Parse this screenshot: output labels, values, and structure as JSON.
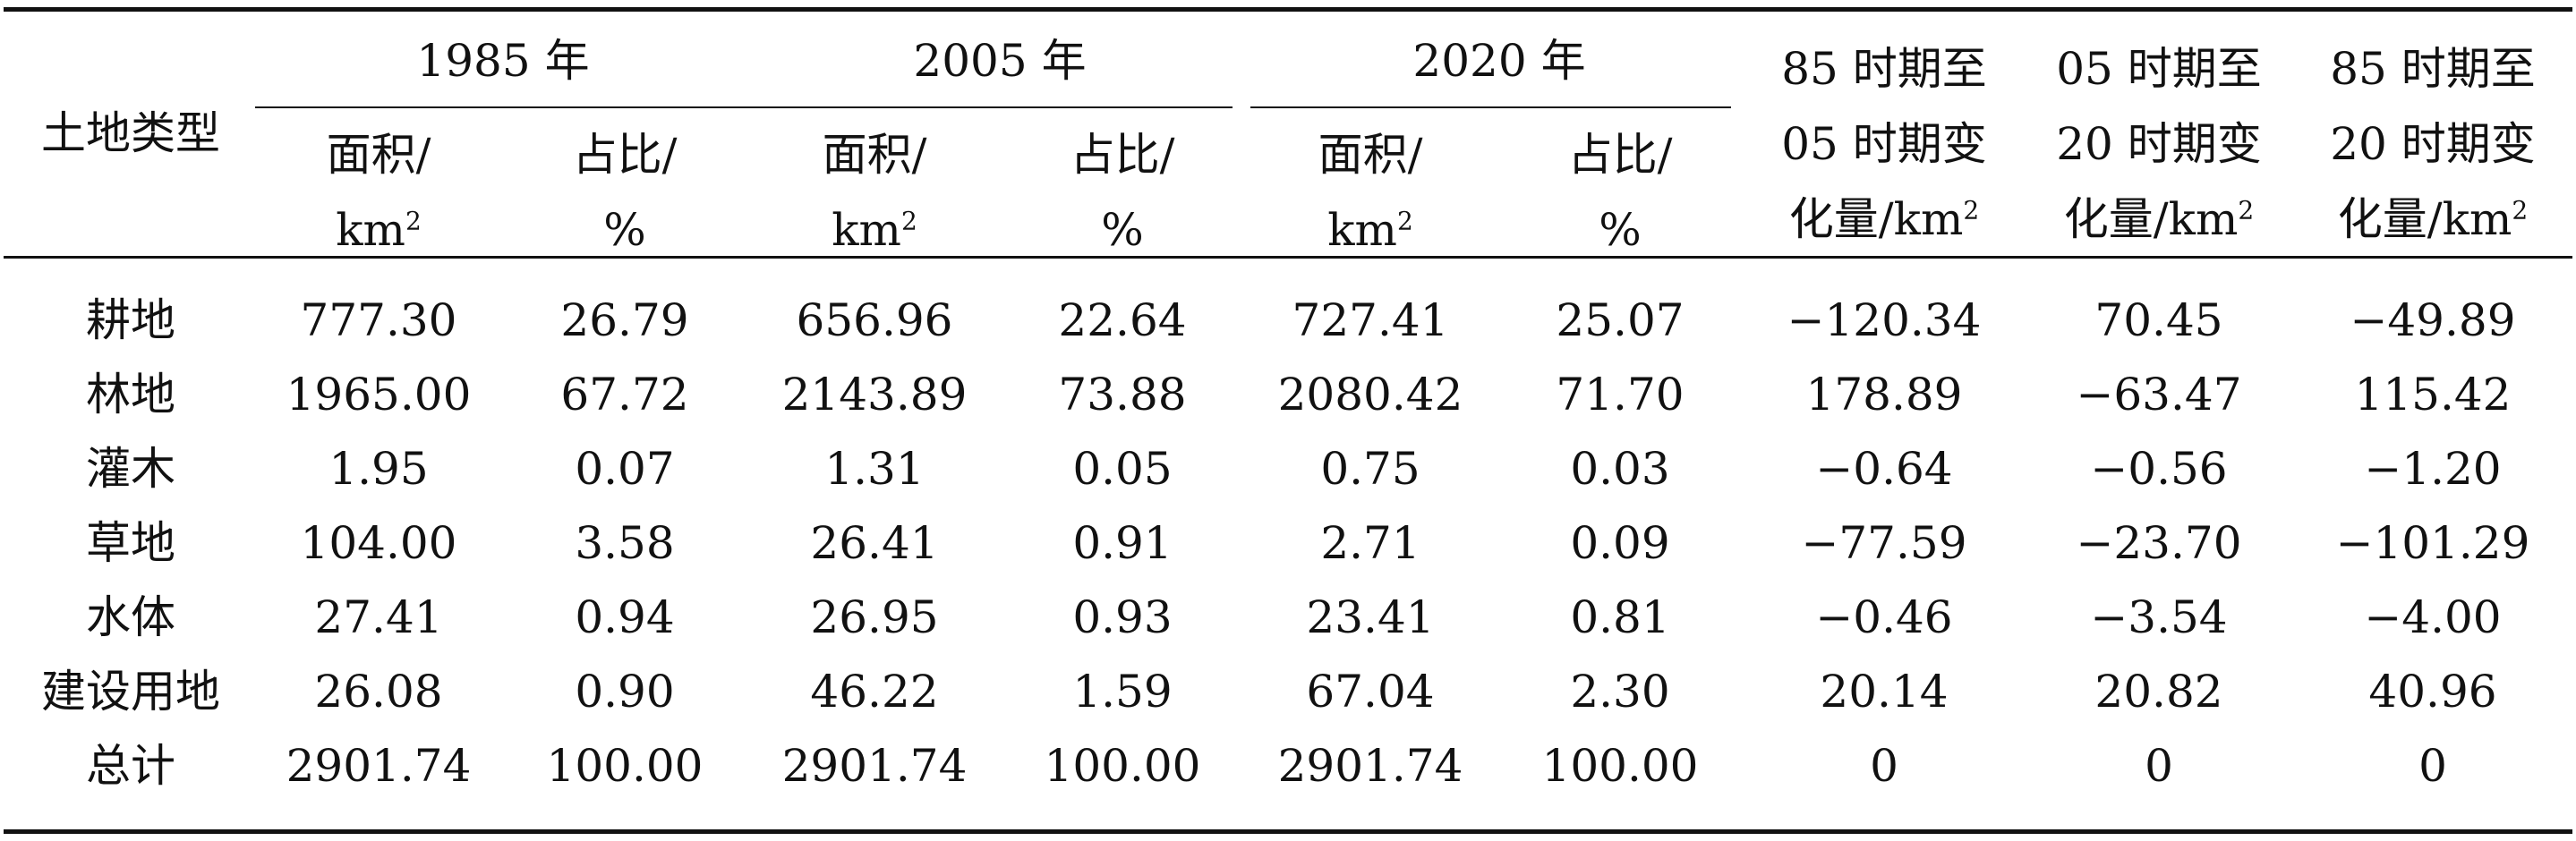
{
  "table": {
    "header": {
      "land_type": "土地类型",
      "years": [
        {
          "label": "1985 年",
          "area": "面积/",
          "area_unit": "km",
          "area_sup": "2",
          "share": "占比/",
          "share_unit": "%"
        },
        {
          "label": "2005 年",
          "area": "面积/",
          "area_unit": "km",
          "area_sup": "2",
          "share": "占比/",
          "share_unit": "%"
        },
        {
          "label": "2020 年",
          "area": "面积/",
          "area_unit": "km",
          "area_sup": "2",
          "share": "占比/",
          "share_unit": "%"
        }
      ],
      "changes": [
        {
          "line1": "85 时期至",
          "line2": "05 时期变",
          "line3": "化量/km",
          "sup": "2"
        },
        {
          "line1": "05 时期至",
          "line2": "20 时期变",
          "line3": "化量/km",
          "sup": "2"
        },
        {
          "line1": "85 时期至",
          "line2": "20 时期变",
          "line3": "化量/km",
          "sup": "2"
        }
      ]
    },
    "rows": [
      {
        "type": "耕地",
        "values": [
          "777.30",
          "26.79",
          "656.96",
          "22.64",
          "727.41",
          "25.07",
          "−120.34",
          "70.45",
          "−49.89"
        ]
      },
      {
        "type": "林地",
        "values": [
          "1965.00",
          "67.72",
          "2143.89",
          "73.88",
          "2080.42",
          "71.70",
          "178.89",
          "−63.47",
          "115.42"
        ]
      },
      {
        "type": "灌木",
        "values": [
          "1.95",
          "0.07",
          "1.31",
          "0.05",
          "0.75",
          "0.03",
          "−0.64",
          "−0.56",
          "−1.20"
        ]
      },
      {
        "type": "草地",
        "values": [
          "104.00",
          "3.58",
          "26.41",
          "0.91",
          "2.71",
          "0.09",
          "−77.59",
          "−23.70",
          "−101.29"
        ]
      },
      {
        "type": "水体",
        "values": [
          "27.41",
          "0.94",
          "26.95",
          "0.93",
          "23.41",
          "0.81",
          "−0.46",
          "−3.54",
          "−4.00"
        ]
      },
      {
        "type": "建设用地",
        "values": [
          "26.08",
          "0.90",
          "46.22",
          "1.59",
          "67.04",
          "2.30",
          "20.14",
          "20.82",
          "40.96"
        ]
      },
      {
        "type": "总计",
        "values": [
          "2901.74",
          "100.00",
          "2901.74",
          "100.00",
          "2901.74",
          "100.00",
          "0",
          "0",
          "0"
        ]
      }
    ]
  }
}
